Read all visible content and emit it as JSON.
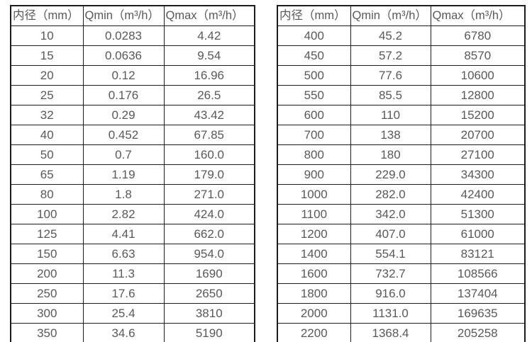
{
  "colors": {
    "background": "#ffffff",
    "border": "#1c1c1c",
    "text": "#595959"
  },
  "tables": [
    {
      "name": "flow-spec-table-small-diameters",
      "headers": [
        "内径（mm）",
        "Qmin（m³/h）",
        "Qmax（m³/h）"
      ],
      "rows": [
        [
          "10",
          "0.0283",
          "4.42"
        ],
        [
          "15",
          "0.0636",
          "9.54"
        ],
        [
          "20",
          "0.12",
          "16.96"
        ],
        [
          "25",
          "0.176",
          "26.5"
        ],
        [
          "32",
          "0.29",
          "43.42"
        ],
        [
          "40",
          "0.452",
          "67.85"
        ],
        [
          "50",
          "0.7",
          "160.0"
        ],
        [
          "65",
          "1.19",
          "179.0"
        ],
        [
          "80",
          "1.8",
          "271.0"
        ],
        [
          "100",
          "2.82",
          "424.0"
        ],
        [
          "125",
          "4.41",
          "662.0"
        ],
        [
          "150",
          "6.63",
          "954.0"
        ],
        [
          "200",
          "11.3",
          "1690"
        ],
        [
          "250",
          "17.6",
          "2650"
        ],
        [
          "300",
          "25.4",
          "3810"
        ],
        [
          "350",
          "34.6",
          "5190"
        ]
      ]
    },
    {
      "name": "flow-spec-table-large-diameters",
      "headers": [
        "内径（mm）",
        "Qmin（m³/h）",
        "Qmax（m³/h）"
      ],
      "rows": [
        [
          "400",
          "45.2",
          "6780"
        ],
        [
          "450",
          "57.2",
          "8570"
        ],
        [
          "500",
          "77.6",
          "10600"
        ],
        [
          "550",
          "85.5",
          "12800"
        ],
        [
          "600",
          "110",
          "15200"
        ],
        [
          "700",
          "138",
          "20700"
        ],
        [
          "800",
          "180",
          "27100"
        ],
        [
          "900",
          "229.0",
          "34300"
        ],
        [
          "1000",
          "282.0",
          "42400"
        ],
        [
          "1100",
          "342.0",
          "51300"
        ],
        [
          "1200",
          "407.0",
          "61000"
        ],
        [
          "1400",
          "554.1",
          "83121"
        ],
        [
          "1600",
          "732.7",
          "108566"
        ],
        [
          "1800",
          "916.0",
          "137404"
        ],
        [
          "2000",
          "1131.0",
          "169635"
        ],
        [
          "2200",
          "1368.4",
          "205258"
        ]
      ]
    }
  ]
}
